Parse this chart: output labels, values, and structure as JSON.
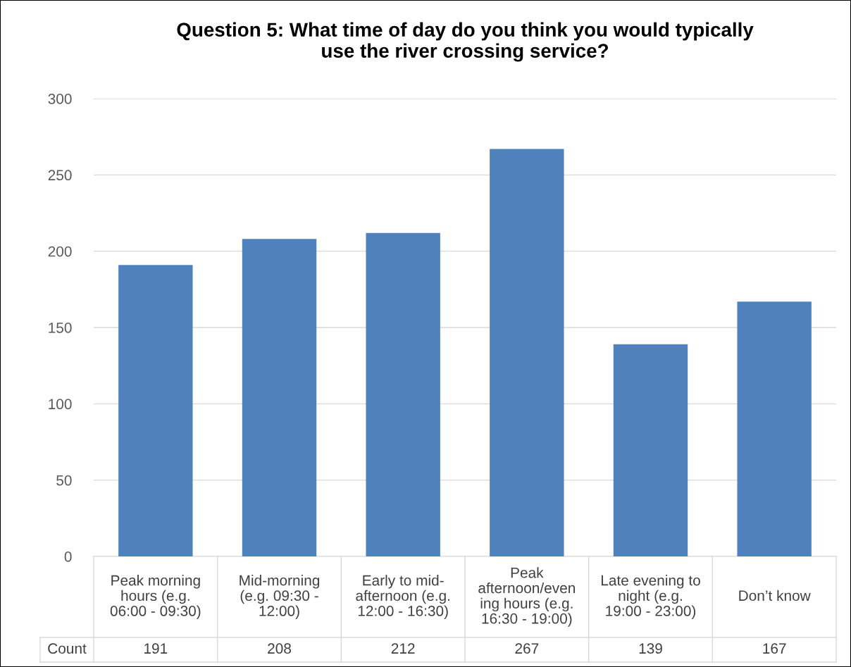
{
  "chart_data": {
    "type": "bar",
    "title": "Question 5: What time of day do you think you would typically\nuse the river crossing service?",
    "categories": [
      "Peak morning\nhours (e.g.\n06:00 - 09:30)",
      "Mid-morning\n(e.g. 09:30 -\n12:00)",
      "Early to mid-\nafternoon (e.g.\n12:00 - 16:30)",
      "Peak\nafternoon/even\ning hours (e.g.\n16:30 - 19:00)",
      "Late evening to\nnight (e.g.\n19:00 - 23:00)",
      "Don’t know"
    ],
    "series": [
      {
        "name": "Count",
        "color": "#4f81bd",
        "values": [
          191,
          208,
          212,
          267,
          139,
          167
        ]
      }
    ],
    "ylim": [
      0,
      300
    ],
    "yticks": [
      0,
      50,
      100,
      150,
      200,
      250,
      300
    ],
    "grid": "y",
    "legend": false,
    "data_labels": true
  }
}
